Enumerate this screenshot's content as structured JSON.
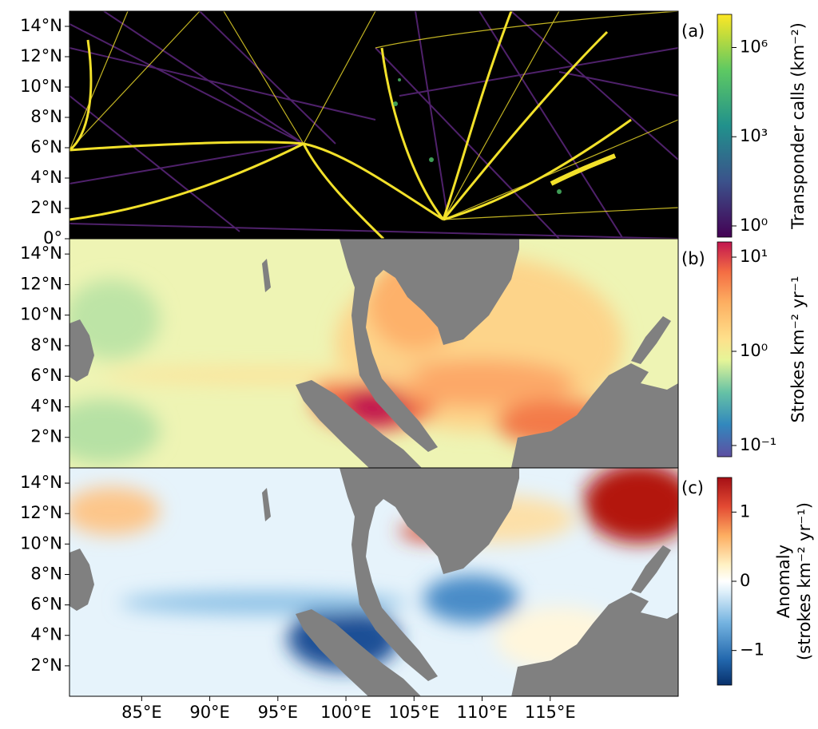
{
  "xlim": [
    79.7,
    124.4
  ],
  "ylim": [
    0,
    15
  ],
  "xticks": [
    {
      "value": 85,
      "label": "85°E"
    },
    {
      "value": 90,
      "label": "90°E"
    },
    {
      "value": 95,
      "label": "95°E"
    },
    {
      "value": 100,
      "label": "100°E"
    },
    {
      "value": 105,
      "label": "105°E"
    },
    {
      "value": 110,
      "label": "110°E"
    },
    {
      "value": 115,
      "label": "115°E"
    }
  ],
  "panels": [
    {
      "label": "(a)",
      "yticks": [
        {
          "value": 0,
          "label": "0°"
        },
        {
          "value": 2,
          "label": "2°N"
        },
        {
          "value": 4,
          "label": "4°N"
        },
        {
          "value": 6,
          "label": "6°N"
        },
        {
          "value": 8,
          "label": "8°N"
        },
        {
          "value": 10,
          "label": "10°N"
        },
        {
          "value": 12,
          "label": "12°N"
        },
        {
          "value": 14,
          "label": "14°N"
        }
      ],
      "colorbar": {
        "label": [
          "Transponder calls (km⁻²)"
        ],
        "log": true,
        "clim": [
          0.42,
          13000000
        ],
        "ticks": [
          {
            "value": 1,
            "label": "10⁰"
          },
          {
            "value": 1000,
            "label": "10³"
          },
          {
            "value": 1000000,
            "label": "10⁶"
          }
        ]
      }
    },
    {
      "label": "(b)",
      "yticks": [
        {
          "value": 2,
          "label": "2°N"
        },
        {
          "value": 4,
          "label": "4°N"
        },
        {
          "value": 6,
          "label": "6°N"
        },
        {
          "value": 8,
          "label": "8°N"
        },
        {
          "value": 10,
          "label": "10°N"
        },
        {
          "value": 12,
          "label": "12°N"
        },
        {
          "value": 14,
          "label": "14°N"
        }
      ],
      "colorbar": {
        "label": [
          "Strokes km⁻² yr⁻¹"
        ],
        "log": true,
        "clim": [
          0.076,
          14.5
        ],
        "ticks": [
          {
            "value": 0.1,
            "label": "10⁻¹"
          },
          {
            "value": 1,
            "label": "10⁰"
          },
          {
            "value": 10,
            "label": "10¹"
          }
        ]
      }
    },
    {
      "label": "(c)",
      "yticks": [
        {
          "value": 2,
          "label": "2°N"
        },
        {
          "value": 4,
          "label": "4°N"
        },
        {
          "value": 6,
          "label": "6°N"
        },
        {
          "value": 8,
          "label": "8°N"
        },
        {
          "value": 10,
          "label": "10°N"
        },
        {
          "value": 12,
          "label": "12°N"
        },
        {
          "value": 14,
          "label": "14°N"
        }
      ],
      "colorbar": {
        "label": [
          "Anomaly",
          "(strokes km⁻² yr⁻¹)"
        ],
        "log": false,
        "clim": [
          -1.5,
          1.5
        ],
        "ticks": [
          {
            "value": -1,
            "label": "−1"
          },
          {
            "value": 0,
            "label": "0"
          },
          {
            "value": 1,
            "label": "1"
          }
        ]
      }
    }
  ]
}
